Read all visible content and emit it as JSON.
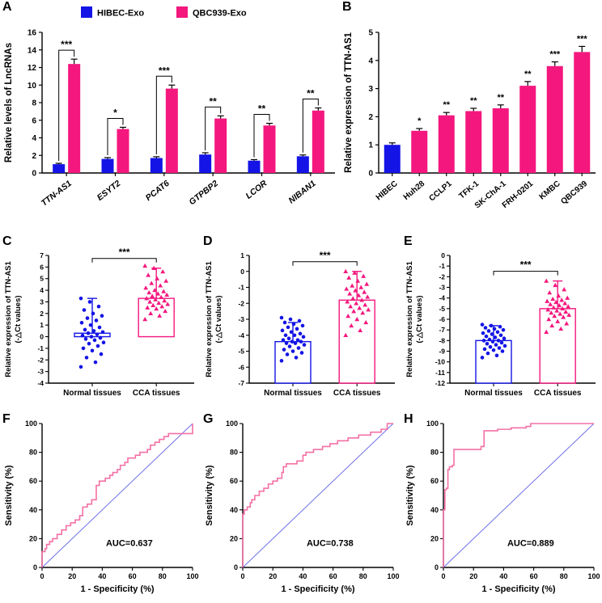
{
  "panels": {
    "A": "A",
    "B": "B",
    "C": "C",
    "D": "D",
    "E": "E",
    "F": "F",
    "G": "G",
    "H": "H"
  },
  "colors": {
    "blue": "#1414e6",
    "pink": "#f4177e",
    "roc_pink": "#f470a5",
    "roc_diag": "#7070e8"
  },
  "chart_data": [
    {
      "panel": "A",
      "type": "grouped-bar",
      "title": "",
      "ylabel": "Relative levels of LncRNAs",
      "ylim": [
        0,
        16
      ],
      "yticks": [
        0,
        2,
        4,
        6,
        8,
        10,
        12,
        14,
        16
      ],
      "categories": [
        "TTN-AS1",
        "ESYT2",
        "PCAT6",
        "GTPBP2",
        "LCOR",
        "NIBAN1"
      ],
      "series": [
        {
          "name": "HIBEC-Exo",
          "color": "#1414e6",
          "values": [
            1.0,
            1.6,
            1.7,
            2.1,
            1.4,
            1.9
          ],
          "errors": [
            0.1,
            0.15,
            0.15,
            0.2,
            0.12,
            0.15
          ]
        },
        {
          "name": "QBC939-Exo",
          "color": "#f4177e",
          "values": [
            12.4,
            5.0,
            9.6,
            6.2,
            5.4,
            7.1
          ],
          "errors": [
            0.55,
            0.2,
            0.4,
            0.3,
            0.25,
            0.3
          ]
        }
      ],
      "significance": [
        "***",
        "*",
        "***",
        "**",
        "**",
        "**"
      ]
    },
    {
      "panel": "B",
      "type": "bar",
      "ylabel": "Relative expression of TTN-AS1",
      "ylim": [
        0,
        5
      ],
      "yticks": [
        0,
        1,
        2,
        3,
        4,
        5
      ],
      "categories": [
        "HIBEC",
        "Huh28",
        "CCLP1",
        "TFK-1",
        "SK-ChA-1",
        "FRH-0201",
        "KMBC",
        "QBC939"
      ],
      "values": [
        1.0,
        1.5,
        2.05,
        2.2,
        2.3,
        3.1,
        3.8,
        4.3
      ],
      "errors": [
        0.07,
        0.08,
        0.1,
        0.1,
        0.12,
        0.15,
        0.15,
        0.2
      ],
      "colors": [
        "#1414e6",
        "#f4177e",
        "#f4177e",
        "#f4177e",
        "#f4177e",
        "#f4177e",
        "#f4177e",
        "#f4177e"
      ],
      "significance": [
        "",
        "*",
        "**",
        "**",
        "**",
        "**",
        "***",
        "***"
      ]
    },
    {
      "panel": "C",
      "type": "scatter-bar",
      "ylabel": "Relative expression of TTN-AS1",
      "ylabel2": "(-△Ct values)",
      "ylim": [
        -4,
        7
      ],
      "yticks": [
        7,
        6,
        5,
        4,
        3,
        2,
        1,
        0,
        -1,
        -2,
        -3,
        -4
      ],
      "bar_base": 0,
      "significance": "***",
      "groups": [
        {
          "label": "Normal tissues",
          "color": "#1414e6",
          "marker": "circle",
          "mean": 0.3,
          "sd_top": 3.3,
          "points": [
            -2.6,
            -2.2,
            -1.8,
            -1.5,
            -1.2,
            -1.0,
            -0.8,
            -0.6,
            -0.5,
            -0.3,
            -0.2,
            -0.1,
            0.0,
            0.1,
            0.2,
            0.3,
            0.4,
            0.5,
            0.6,
            0.8,
            1.0,
            1.2,
            1.4,
            1.6,
            1.8,
            2.0,
            2.3,
            2.6,
            3.0,
            3.3
          ]
        },
        {
          "label": "CCA tissues",
          "color": "#f4177e",
          "marker": "triangle",
          "mean": 3.3,
          "sd_top": 5.9,
          "points": [
            1.5,
            1.8,
            2.0,
            2.2,
            2.4,
            2.5,
            2.6,
            2.7,
            2.8,
            2.9,
            3.0,
            3.1,
            3.2,
            3.3,
            3.4,
            3.5,
            3.6,
            3.7,
            3.8,
            3.9,
            4.0,
            4.2,
            4.4,
            4.6,
            4.8,
            5.0,
            5.3,
            5.6,
            5.9,
            6.1
          ]
        }
      ]
    },
    {
      "panel": "D",
      "type": "scatter-bar",
      "ylabel": "Relative expression of TTN-AS1",
      "ylabel2": "(-△Ct values)",
      "ylim": [
        -7,
        1
      ],
      "yticks": [
        1,
        0,
        -1,
        -2,
        -3,
        -4,
        -5,
        -6,
        -7
      ],
      "bar_base": -7,
      "significance": "***",
      "groups": [
        {
          "label": "Normal tissues",
          "color": "#1414e6",
          "marker": "circle",
          "mean": -4.4,
          "sd_top": -3.2,
          "points": [
            -5.6,
            -5.4,
            -5.2,
            -5.1,
            -5.0,
            -4.9,
            -4.8,
            -4.7,
            -4.6,
            -4.5,
            -4.5,
            -4.4,
            -4.4,
            -4.3,
            -4.3,
            -4.2,
            -4.1,
            -4.0,
            -4.0,
            -3.9,
            -3.8,
            -3.7,
            -3.6,
            -3.5,
            -3.4,
            -3.3,
            -3.2,
            -3.1,
            -3.0,
            -2.9
          ]
        },
        {
          "label": "CCA tissues",
          "color": "#f4177e",
          "marker": "triangle",
          "mean": -1.8,
          "sd_top": 0.0,
          "points": [
            -4.0,
            -3.7,
            -3.4,
            -3.2,
            -3.0,
            -2.8,
            -2.6,
            -2.5,
            -2.4,
            -2.3,
            -2.2,
            -2.1,
            -2.0,
            -1.9,
            -1.8,
            -1.7,
            -1.6,
            -1.5,
            -1.4,
            -1.3,
            -1.2,
            -1.1,
            -1.0,
            -0.9,
            -0.8,
            -0.6,
            -0.4,
            -0.3,
            -0.1,
            0.0
          ]
        }
      ]
    },
    {
      "panel": "E",
      "type": "scatter-bar",
      "ylabel": "Relative expression of TTN-AS1",
      "ylabel2": "(-△Ct values)",
      "ylim": [
        -12,
        0
      ],
      "yticks": [
        0,
        -1,
        -2,
        -3,
        -4,
        -5,
        -6,
        -7,
        -8,
        -9,
        -10,
        -11,
        -12
      ],
      "bar_base": -12,
      "significance": "***",
      "groups": [
        {
          "label": "Normal tissues",
          "color": "#1414e6",
          "marker": "circle",
          "mean": -8.0,
          "sd_top": -6.6,
          "points": [
            -9.6,
            -9.4,
            -9.2,
            -9.0,
            -8.9,
            -8.8,
            -8.7,
            -8.6,
            -8.5,
            -8.4,
            -8.3,
            -8.2,
            -8.1,
            -8.0,
            -8.0,
            -7.9,
            -7.8,
            -7.7,
            -7.6,
            -7.5,
            -7.4,
            -7.3,
            -7.2,
            -7.1,
            -7.0,
            -6.9,
            -6.8,
            -6.7,
            -6.6,
            -6.5
          ]
        },
        {
          "label": "CCA tissues",
          "color": "#f4177e",
          "marker": "triangle",
          "mean": -5.0,
          "sd_top": -2.4,
          "points": [
            -7.2,
            -6.9,
            -6.6,
            -6.4,
            -6.2,
            -6.0,
            -5.8,
            -5.7,
            -5.6,
            -5.5,
            -5.4,
            -5.3,
            -5.2,
            -5.1,
            -5.0,
            -4.9,
            -4.8,
            -4.7,
            -4.6,
            -4.5,
            -4.4,
            -4.3,
            -4.2,
            -4.1,
            -4.0,
            -3.8,
            -3.5,
            -3.2,
            -2.8,
            -2.4
          ]
        }
      ]
    },
    {
      "panel": "F",
      "type": "roc",
      "xlabel": "1 - Specificity (%)",
      "ylabel": "Sensitivity (%)",
      "ticks": [
        0,
        20,
        40,
        60,
        80,
        100
      ],
      "auc_label": "AUC=0.637",
      "roc": [
        [
          0,
          0
        ],
        [
          0,
          11
        ],
        [
          2,
          13
        ],
        [
          3,
          16
        ],
        [
          5,
          18
        ],
        [
          7,
          20
        ],
        [
          10,
          23
        ],
        [
          13,
          26
        ],
        [
          16,
          29
        ],
        [
          19,
          31
        ],
        [
          22,
          33
        ],
        [
          25,
          36
        ],
        [
          27,
          42
        ],
        [
          30,
          44
        ],
        [
          33,
          47
        ],
        [
          36,
          57
        ],
        [
          38,
          60
        ],
        [
          42,
          62
        ],
        [
          45,
          64
        ],
        [
          47,
          66
        ],
        [
          50,
          68
        ],
        [
          52,
          71
        ],
        [
          55,
          73
        ],
        [
          57,
          76
        ],
        [
          62,
          78
        ],
        [
          65,
          80
        ],
        [
          70,
          82
        ],
        [
          72,
          85
        ],
        [
          75,
          87
        ],
        [
          78,
          89
        ],
        [
          81,
          91
        ],
        [
          84,
          93
        ],
        [
          86,
          93
        ],
        [
          100,
          100
        ]
      ]
    },
    {
      "panel": "G",
      "type": "roc",
      "xlabel": "1 - Specificity (%)",
      "ylabel": "Sensitivity (%)",
      "ticks": [
        0,
        20,
        40,
        60,
        80,
        100
      ],
      "auc_label": "AUC=0.738",
      "roc": [
        [
          0,
          0
        ],
        [
          0,
          37
        ],
        [
          1,
          40
        ],
        [
          3,
          42
        ],
        [
          5,
          45
        ],
        [
          6,
          47
        ],
        [
          8,
          50
        ],
        [
          11,
          53
        ],
        [
          14,
          55
        ],
        [
          17,
          58
        ],
        [
          20,
          60
        ],
        [
          23,
          62
        ],
        [
          26,
          66
        ],
        [
          27,
          70
        ],
        [
          29,
          72
        ],
        [
          33,
          72
        ],
        [
          36,
          74
        ],
        [
          40,
          78
        ],
        [
          42,
          80
        ],
        [
          47,
          82
        ],
        [
          53,
          84
        ],
        [
          58,
          86
        ],
        [
          63,
          88
        ],
        [
          70,
          90
        ],
        [
          77,
          92
        ],
        [
          85,
          94
        ],
        [
          92,
          96
        ],
        [
          96,
          100
        ],
        [
          100,
          100
        ]
      ]
    },
    {
      "panel": "H",
      "type": "roc",
      "xlabel": "1 - Specificity (%)",
      "ylabel": "Sensitivity (%)",
      "ticks": [
        0,
        20,
        40,
        60,
        80,
        100
      ],
      "auc_label": "AUC=0.889",
      "roc": [
        [
          0,
          0
        ],
        [
          0,
          40
        ],
        [
          1,
          54
        ],
        [
          2,
          55
        ],
        [
          3,
          68
        ],
        [
          4,
          70
        ],
        [
          6,
          71
        ],
        [
          7,
          82
        ],
        [
          24,
          82
        ],
        [
          25,
          84
        ],
        [
          27,
          95
        ],
        [
          36,
          96
        ],
        [
          45,
          97
        ],
        [
          55,
          98
        ],
        [
          58,
          100
        ],
        [
          100,
          100
        ]
      ]
    }
  ]
}
